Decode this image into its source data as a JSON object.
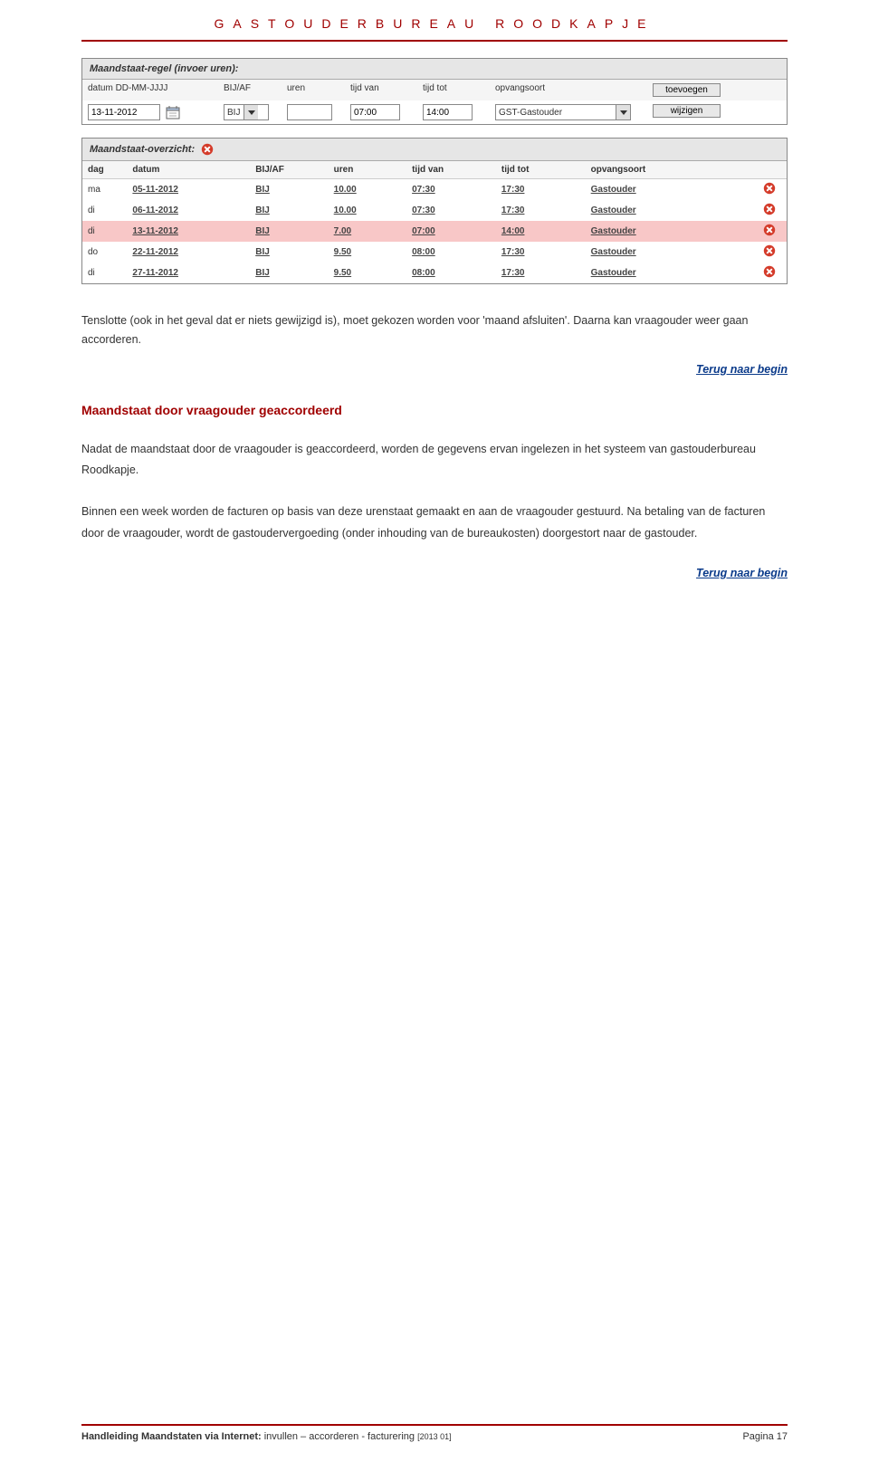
{
  "colors": {
    "accent": "#a00000",
    "link": "#0a3a8a",
    "highlight_row": "#f8c7c7",
    "panel_header_bg": "#e6e6e6",
    "delete_icon": "#d43b2a",
    "delete_icon_x": "#ffffff"
  },
  "header": {
    "title": "GASTOUDERBUREAU   ROODKAPJE"
  },
  "invoer_panel": {
    "title": "Maandstaat-regel (invoer uren):",
    "columns": {
      "datum": "datum DD-MM-JJJJ",
      "bijaf": "BIJ/AF",
      "uren": "uren",
      "tijdvan": "tijd van",
      "tijdtot": "tijd tot",
      "opvang": "opvangsoort"
    },
    "fields": {
      "datum": "13-11-2012",
      "bijaf": "BIJ",
      "uren": "",
      "tijdvan": "07:00",
      "tijdtot": "14:00",
      "opvang": "GST-Gastouder"
    },
    "buttons": {
      "toevoegen": "toevoegen",
      "wijzigen": "wijzigen"
    }
  },
  "overzicht_panel": {
    "title": "Maandstaat-overzicht:",
    "columns": {
      "dag": "dag",
      "datum": "datum",
      "bijaf": "BIJ/AF",
      "uren": "uren",
      "tijdvan": "tijd van",
      "tijdtot": "tijd tot",
      "opvang": "opvangsoort"
    },
    "rows": [
      {
        "dag": "ma",
        "datum": "05-11-2012",
        "bijaf": "BIJ",
        "uren": "10.00",
        "tijdvan": "07:30",
        "tijdtot": "17:30",
        "opvang": "Gastouder",
        "highlight": false
      },
      {
        "dag": "di",
        "datum": "06-11-2012",
        "bijaf": "BIJ",
        "uren": "10.00",
        "tijdvan": "07:30",
        "tijdtot": "17:30",
        "opvang": "Gastouder",
        "highlight": false
      },
      {
        "dag": "di",
        "datum": "13-11-2012",
        "bijaf": "BIJ",
        "uren": "7.00",
        "tijdvan": "07:00",
        "tijdtot": "14:00",
        "opvang": "Gastouder",
        "highlight": true
      },
      {
        "dag": "do",
        "datum": "22-11-2012",
        "bijaf": "BIJ",
        "uren": "9.50",
        "tijdvan": "08:00",
        "tijdtot": "17:30",
        "opvang": "Gastouder",
        "highlight": false
      },
      {
        "dag": "di",
        "datum": "27-11-2012",
        "bijaf": "BIJ",
        "uren": "9.50",
        "tijdvan": "08:00",
        "tijdtot": "17:30",
        "opvang": "Gastouder",
        "highlight": false
      }
    ]
  },
  "body": {
    "para1": "Tenslotte (ook in het geval dat er niets gewijzigd is), moet gekozen worden voor 'maand afsluiten'. Daarna kan vraagouder weer gaan accorderen.",
    "terug_link": "Terug naar begin",
    "section_heading": "Maandstaat door vraagouder geaccordeerd",
    "para2": "Nadat de maandstaat door de vraagouder is geaccordeerd, worden de gegevens ervan ingelezen in het systeem van gastouderbureau Roodkapje.",
    "para3": "Binnen een week worden de facturen op basis van deze urenstaat gemaakt en aan de vraagouder gestuurd. Na betaling van de facturen door de vraagouder, wordt de gastoudervergoeding (onder inhouding van de bureaukosten) doorgestort naar de gastouder."
  },
  "footer": {
    "left_bold": "Handleiding Maandstaten via Internet:",
    "left_rest": " invullen – accorderen - facturering ",
    "edition": "[2013 01]",
    "right": "Pagina 17"
  }
}
